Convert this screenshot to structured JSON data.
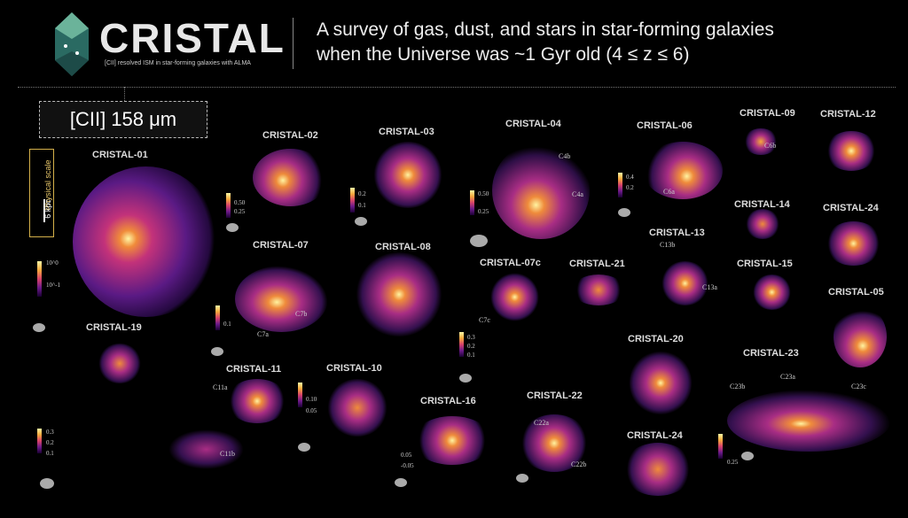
{
  "header": {
    "brand": "CRISTAL",
    "tagline": "[CII] resolved ISM in star-forming galaxies with ALMA",
    "title_line1": "A survey of gas, dust, and stars in star-forming galaxies",
    "title_line2": "when the Universe was ~1 Gyr old (4 ≤ z ≤ 6)"
  },
  "panel_label": "[CII] 158 μm",
  "scale": {
    "label": "Physical scale",
    "value": "6 kpc"
  },
  "galaxies": [
    {
      "name": "CRISTAL-01"
    },
    {
      "name": "CRISTAL-02"
    },
    {
      "name": "CRISTAL-03"
    },
    {
      "name": "CRISTAL-04"
    },
    {
      "name": "CRISTAL-06"
    },
    {
      "name": "CRISTAL-09"
    },
    {
      "name": "CRISTAL-12"
    },
    {
      "name": "CRISTAL-14"
    },
    {
      "name": "CRISTAL-24"
    },
    {
      "name": "CRISTAL-13"
    },
    {
      "name": "CRISTAL-07"
    },
    {
      "name": "CRISTAL-08"
    },
    {
      "name": "CRISTAL-07c"
    },
    {
      "name": "CRISTAL-21"
    },
    {
      "name": "CRISTAL-15"
    },
    {
      "name": "CRISTAL-05"
    },
    {
      "name": "CRISTAL-19"
    },
    {
      "name": "CRISTAL-20"
    },
    {
      "name": "CRISTAL-11"
    },
    {
      "name": "CRISTAL-10"
    },
    {
      "name": "CRISTAL-23"
    },
    {
      "name": "CRISTAL-16"
    },
    {
      "name": "CRISTAL-22"
    },
    {
      "name": "CRISTAL-24"
    }
  ],
  "components": [
    "C4b",
    "C4a",
    "C6a",
    "C6b",
    "C13b",
    "C13a",
    "C7b",
    "C7a",
    "C7c",
    "C11a",
    "C11b",
    "C23b",
    "C23a",
    "C23c",
    "C22a",
    "C22b"
  ],
  "ticks": [
    "10^0",
    "10^-1",
    "0.50",
    "0.25",
    "0.2",
    "0.1",
    "0.50",
    "0.25",
    "0.4",
    "0.2",
    "0.1",
    "0.3",
    "0.2",
    "0.1",
    "0.3",
    "0.2",
    "0.1",
    "0.10",
    "0.05",
    "0.05",
    "0.10",
    "-0.05",
    "0.25",
    "0.2",
    "0.1"
  ]
}
